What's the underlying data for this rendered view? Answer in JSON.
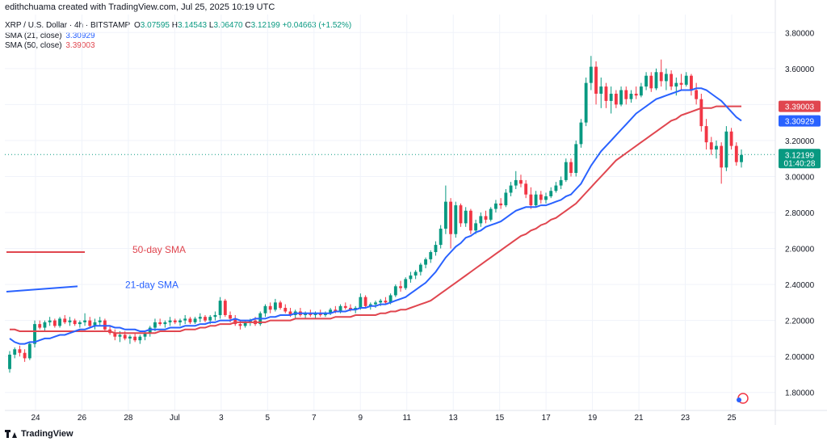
{
  "header": {
    "text": "edithchuama created with TradingView.com, Jul 25, 2025 10:19 UTC"
  },
  "legend": {
    "symbol": "XRP / U.S. Dollar · 4h · BITSTAMP",
    "o_label": "O",
    "o": "3.07595",
    "h_label": "H",
    "h": "3.14543",
    "l_label": "L",
    "l": "3.06470",
    "c_label": "C",
    "c": "3.12199",
    "change": "+0.04663 (+1.52%)",
    "sma21_label": "SMA (21, close)",
    "sma21": "3.30929",
    "sma50_label": "SMA (50, close)",
    "sma50": "3.39003"
  },
  "footer": {
    "brand": "TradingView"
  },
  "colors": {
    "up": "#089981",
    "down": "#f23645",
    "sma21": "#2962ff",
    "sma50": "#e0464f",
    "last": "#089981"
  },
  "chart_data": {
    "type": "candlestick",
    "ylim": [
      1.7,
      3.9
    ],
    "y_ticks": [
      "3.80000",
      "3.60000",
      "3.40000",
      "3.20000",
      "3.00000",
      "2.80000",
      "2.60000",
      "2.40000",
      "2.20000",
      "2.00000",
      "1.80000"
    ],
    "x_ticks": [
      "24",
      "26",
      "28",
      "Jul",
      "3",
      "5",
      "7",
      "9",
      "11",
      "13",
      "15",
      "17",
      "19",
      "21",
      "23",
      "25"
    ],
    "annotations": [
      {
        "text": "50-day SMA",
        "series": "sma50"
      },
      {
        "text": "21-day SMA",
        "series": "sma21"
      }
    ],
    "sample_lines": [
      {
        "series": "sma50",
        "y": [
          2.58,
          2.58
        ]
      },
      {
        "series": "sma21",
        "y": [
          2.36,
          2.39
        ]
      }
    ],
    "price_labels": [
      {
        "value": 3.39003,
        "text": "3.39003",
        "series": "sma50"
      },
      {
        "value": 3.30929,
        "text": "3.30929",
        "series": "sma21"
      },
      {
        "value": 3.12199,
        "text": "3.12199",
        "sub": "01:40:28",
        "series": "last"
      }
    ],
    "candles": [
      [
        1.93,
        2.03,
        1.91,
        2.01
      ],
      [
        2.01,
        2.05,
        1.99,
        2.04
      ],
      [
        2.04,
        2.06,
        2.0,
        2.02
      ],
      [
        2.02,
        2.04,
        1.97,
        1.99
      ],
      [
        1.99,
        2.08,
        1.98,
        2.07
      ],
      [
        2.07,
        2.2,
        2.05,
        2.18
      ],
      [
        2.18,
        2.2,
        2.15,
        2.16
      ],
      [
        2.16,
        2.2,
        2.14,
        2.19
      ],
      [
        2.19,
        2.22,
        2.17,
        2.2
      ],
      [
        2.2,
        2.21,
        2.16,
        2.17
      ],
      [
        2.17,
        2.22,
        2.16,
        2.21
      ],
      [
        2.21,
        2.23,
        2.18,
        2.19
      ],
      [
        2.19,
        2.22,
        2.17,
        2.2
      ],
      [
        2.2,
        2.21,
        2.17,
        2.18
      ],
      [
        2.18,
        2.2,
        2.16,
        2.19
      ],
      [
        2.19,
        2.24,
        2.17,
        2.2
      ],
      [
        2.2,
        2.22,
        2.16,
        2.17
      ],
      [
        2.17,
        2.21,
        2.15,
        2.19
      ],
      [
        2.19,
        2.22,
        2.17,
        2.2
      ],
      [
        2.2,
        2.21,
        2.14,
        2.15
      ],
      [
        2.15,
        2.17,
        2.12,
        2.13
      ],
      [
        2.13,
        2.15,
        2.09,
        2.11
      ],
      [
        2.11,
        2.14,
        2.08,
        2.12
      ],
      [
        2.12,
        2.14,
        2.09,
        2.1
      ],
      [
        2.1,
        2.12,
        2.07,
        2.11
      ],
      [
        2.11,
        2.13,
        2.08,
        2.09
      ],
      [
        2.09,
        2.12,
        2.07,
        2.11
      ],
      [
        2.11,
        2.14,
        2.09,
        2.13
      ],
      [
        2.13,
        2.17,
        2.11,
        2.16
      ],
      [
        2.16,
        2.21,
        2.14,
        2.19
      ],
      [
        2.19,
        2.21,
        2.17,
        2.18
      ],
      [
        2.18,
        2.2,
        2.16,
        2.19
      ],
      [
        2.19,
        2.22,
        2.17,
        2.2
      ],
      [
        2.2,
        2.21,
        2.18,
        2.19
      ],
      [
        2.19,
        2.21,
        2.17,
        2.2
      ],
      [
        2.2,
        2.23,
        2.18,
        2.21
      ],
      [
        2.21,
        2.22,
        2.18,
        2.19
      ],
      [
        2.19,
        2.22,
        2.18,
        2.21
      ],
      [
        2.21,
        2.24,
        2.19,
        2.22
      ],
      [
        2.22,
        2.23,
        2.19,
        2.2
      ],
      [
        2.2,
        2.23,
        2.18,
        2.22
      ],
      [
        2.22,
        2.25,
        2.2,
        2.23
      ],
      [
        2.23,
        2.33,
        2.21,
        2.31
      ],
      [
        2.31,
        2.32,
        2.22,
        2.23
      ],
      [
        2.23,
        2.25,
        2.19,
        2.21
      ],
      [
        2.21,
        2.23,
        2.17,
        2.18
      ],
      [
        2.18,
        2.2,
        2.15,
        2.17
      ],
      [
        2.17,
        2.2,
        2.16,
        2.19
      ],
      [
        2.19,
        2.21,
        2.17,
        2.2
      ],
      [
        2.2,
        2.22,
        2.17,
        2.18
      ],
      [
        2.18,
        2.25,
        2.17,
        2.24
      ],
      [
        2.24,
        2.29,
        2.22,
        2.28
      ],
      [
        2.28,
        2.3,
        2.24,
        2.26
      ],
      [
        2.26,
        2.32,
        2.25,
        2.3
      ],
      [
        2.3,
        2.31,
        2.26,
        2.27
      ],
      [
        2.27,
        2.29,
        2.24,
        2.25
      ],
      [
        2.25,
        2.27,
        2.22,
        2.23
      ],
      [
        2.23,
        2.26,
        2.21,
        2.25
      ],
      [
        2.25,
        2.27,
        2.22,
        2.23
      ],
      [
        2.23,
        2.25,
        2.21,
        2.24
      ],
      [
        2.24,
        2.26,
        2.22,
        2.23
      ],
      [
        2.23,
        2.25,
        2.21,
        2.24
      ],
      [
        2.24,
        2.26,
        2.22,
        2.23
      ],
      [
        2.23,
        2.25,
        2.22,
        2.24
      ],
      [
        2.24,
        2.27,
        2.23,
        2.26
      ],
      [
        2.26,
        2.28,
        2.24,
        2.25
      ],
      [
        2.25,
        2.29,
        2.24,
        2.28
      ],
      [
        2.28,
        2.3,
        2.26,
        2.27
      ],
      [
        2.27,
        2.29,
        2.25,
        2.26
      ],
      [
        2.26,
        2.28,
        2.24,
        2.27
      ],
      [
        2.27,
        2.35,
        2.26,
        2.33
      ],
      [
        2.33,
        2.34,
        2.27,
        2.28
      ],
      [
        2.28,
        2.3,
        2.26,
        2.29
      ],
      [
        2.29,
        2.31,
        2.27,
        2.3
      ],
      [
        2.3,
        2.32,
        2.28,
        2.31
      ],
      [
        2.31,
        2.33,
        2.29,
        2.3
      ],
      [
        2.3,
        2.35,
        2.29,
        2.34
      ],
      [
        2.34,
        2.4,
        2.33,
        2.39
      ],
      [
        2.39,
        2.42,
        2.36,
        2.38
      ],
      [
        2.38,
        2.44,
        2.37,
        2.43
      ],
      [
        2.43,
        2.47,
        2.41,
        2.45
      ],
      [
        2.45,
        2.48,
        2.43,
        2.47
      ],
      [
        2.47,
        2.52,
        2.45,
        2.51
      ],
      [
        2.51,
        2.55,
        2.49,
        2.54
      ],
      [
        2.54,
        2.59,
        2.52,
        2.58
      ],
      [
        2.58,
        2.64,
        2.56,
        2.62
      ],
      [
        2.62,
        2.73,
        2.6,
        2.71
      ],
      [
        2.71,
        2.95,
        2.68,
        2.86
      ],
      [
        2.86,
        2.88,
        2.6,
        2.68
      ],
      [
        2.68,
        2.86,
        2.66,
        2.84
      ],
      [
        2.84,
        2.85,
        2.72,
        2.74
      ],
      [
        2.74,
        2.83,
        2.72,
        2.81
      ],
      [
        2.81,
        2.82,
        2.68,
        2.7
      ],
      [
        2.7,
        2.76,
        2.68,
        2.74
      ],
      [
        2.74,
        2.8,
        2.72,
        2.78
      ],
      [
        2.78,
        2.81,
        2.74,
        2.76
      ],
      [
        2.76,
        2.83,
        2.75,
        2.82
      ],
      [
        2.82,
        2.87,
        2.8,
        2.85
      ],
      [
        2.85,
        2.88,
        2.82,
        2.84
      ],
      [
        2.84,
        2.93,
        2.83,
        2.91
      ],
      [
        2.91,
        2.97,
        2.89,
        2.95
      ],
      [
        2.95,
        3.03,
        2.93,
        2.98
      ],
      [
        2.98,
        3.01,
        2.94,
        2.96
      ],
      [
        2.96,
        2.98,
        2.88,
        2.9
      ],
      [
        2.9,
        2.94,
        2.82,
        2.84
      ],
      [
        2.84,
        2.92,
        2.83,
        2.9
      ],
      [
        2.9,
        2.92,
        2.85,
        2.87
      ],
      [
        2.87,
        2.91,
        2.85,
        2.89
      ],
      [
        2.89,
        2.94,
        2.88,
        2.92
      ],
      [
        2.92,
        2.97,
        2.91,
        2.95
      ],
      [
        2.95,
        3.0,
        2.93,
        2.98
      ],
      [
        2.98,
        3.1,
        2.97,
        3.08
      ],
      [
        3.08,
        3.1,
        3.0,
        3.02
      ],
      [
        3.02,
        3.2,
        3.0,
        3.18
      ],
      [
        3.18,
        3.32,
        3.16,
        3.3
      ],
      [
        3.3,
        3.55,
        3.28,
        3.52
      ],
      [
        3.52,
        3.67,
        3.48,
        3.61
      ],
      [
        3.61,
        3.64,
        3.4,
        3.46
      ],
      [
        3.46,
        3.55,
        3.38,
        3.5
      ],
      [
        3.5,
        3.52,
        3.38,
        3.42
      ],
      [
        3.42,
        3.5,
        3.35,
        3.46
      ],
      [
        3.46,
        3.48,
        3.38,
        3.4
      ],
      [
        3.4,
        3.5,
        3.39,
        3.48
      ],
      [
        3.48,
        3.5,
        3.4,
        3.43
      ],
      [
        3.43,
        3.48,
        3.41,
        3.46
      ],
      [
        3.46,
        3.5,
        3.43,
        3.45
      ],
      [
        3.45,
        3.52,
        3.44,
        3.5
      ],
      [
        3.5,
        3.58,
        3.48,
        3.56
      ],
      [
        3.56,
        3.58,
        3.47,
        3.49
      ],
      [
        3.49,
        3.6,
        3.48,
        3.58
      ],
      [
        3.58,
        3.65,
        3.5,
        3.53
      ],
      [
        3.53,
        3.6,
        3.48,
        3.57
      ],
      [
        3.57,
        3.59,
        3.48,
        3.5
      ],
      [
        3.5,
        3.55,
        3.45,
        3.52
      ],
      [
        3.52,
        3.57,
        3.48,
        3.51
      ],
      [
        3.51,
        3.58,
        3.5,
        3.56
      ],
      [
        3.56,
        3.57,
        3.45,
        3.48
      ],
      [
        3.48,
        3.52,
        3.4,
        3.43
      ],
      [
        3.43,
        3.46,
        3.25,
        3.28
      ],
      [
        3.28,
        3.32,
        3.15,
        3.19
      ],
      [
        3.19,
        3.22,
        3.12,
        3.15
      ],
      [
        3.15,
        3.2,
        3.1,
        3.17
      ],
      [
        3.17,
        3.19,
        2.96,
        3.05
      ],
      [
        3.05,
        3.28,
        3.03,
        3.25
      ],
      [
        3.25,
        3.27,
        3.15,
        3.17
      ],
      [
        3.17,
        3.19,
        3.06,
        3.08
      ],
      [
        3.08,
        3.15,
        3.05,
        3.12
      ]
    ],
    "sma21": [
      2.1,
      2.08,
      2.07,
      2.07,
      2.08,
      2.08,
      2.09,
      2.1,
      2.1,
      2.11,
      2.12,
      2.12,
      2.13,
      2.14,
      2.15,
      2.15,
      2.16,
      2.17,
      2.17,
      2.17,
      2.17,
      2.16,
      2.16,
      2.15,
      2.15,
      2.15,
      2.14,
      2.14,
      2.15,
      2.15,
      2.15,
      2.15,
      2.16,
      2.16,
      2.16,
      2.17,
      2.17,
      2.17,
      2.18,
      2.18,
      2.19,
      2.19,
      2.2,
      2.2,
      2.2,
      2.21,
      2.2,
      2.2,
      2.2,
      2.21,
      2.21,
      2.21,
      2.22,
      2.22,
      2.23,
      2.23,
      2.23,
      2.24,
      2.24,
      2.24,
      2.24,
      2.24,
      2.24,
      2.24,
      2.24,
      2.25,
      2.25,
      2.25,
      2.26,
      2.26,
      2.27,
      2.27,
      2.28,
      2.28,
      2.29,
      2.29,
      2.3,
      2.31,
      2.32,
      2.33,
      2.35,
      2.37,
      2.39,
      2.41,
      2.44,
      2.47,
      2.51,
      2.55,
      2.58,
      2.61,
      2.63,
      2.66,
      2.67,
      2.69,
      2.7,
      2.72,
      2.73,
      2.74,
      2.75,
      2.77,
      2.79,
      2.81,
      2.82,
      2.83,
      2.83,
      2.83,
      2.84,
      2.84,
      2.85,
      2.86,
      2.87,
      2.89,
      2.9,
      2.93,
      2.96,
      3.01,
      3.06,
      3.1,
      3.14,
      3.17,
      3.2,
      3.23,
      3.26,
      3.29,
      3.32,
      3.35,
      3.37,
      3.39,
      3.41,
      3.43,
      3.44,
      3.45,
      3.46,
      3.47,
      3.48,
      3.48,
      3.48,
      3.49,
      3.49,
      3.48,
      3.46,
      3.44,
      3.42,
      3.39,
      3.36,
      3.33,
      3.31
    ],
    "sma50": [
      2.15,
      2.15,
      2.14,
      2.14,
      2.14,
      2.14,
      2.14,
      2.14,
      2.14,
      2.14,
      2.14,
      2.14,
      2.14,
      2.14,
      2.14,
      2.14,
      2.14,
      2.14,
      2.14,
      2.14,
      2.14,
      2.13,
      2.13,
      2.13,
      2.13,
      2.13,
      2.13,
      2.13,
      2.13,
      2.13,
      2.14,
      2.14,
      2.14,
      2.14,
      2.14,
      2.15,
      2.15,
      2.15,
      2.16,
      2.16,
      2.17,
      2.17,
      2.18,
      2.18,
      2.18,
      2.19,
      2.19,
      2.19,
      2.19,
      2.19,
      2.19,
      2.19,
      2.2,
      2.2,
      2.2,
      2.2,
      2.2,
      2.21,
      2.21,
      2.21,
      2.21,
      2.21,
      2.21,
      2.21,
      2.21,
      2.22,
      2.22,
      2.22,
      2.22,
      2.23,
      2.23,
      2.23,
      2.23,
      2.23,
      2.24,
      2.24,
      2.25,
      2.25,
      2.26,
      2.26,
      2.27,
      2.28,
      2.29,
      2.3,
      2.31,
      2.33,
      2.35,
      2.37,
      2.39,
      2.41,
      2.43,
      2.45,
      2.47,
      2.49,
      2.51,
      2.53,
      2.55,
      2.57,
      2.59,
      2.61,
      2.63,
      2.65,
      2.67,
      2.68,
      2.7,
      2.71,
      2.73,
      2.74,
      2.76,
      2.77,
      2.79,
      2.81,
      2.83,
      2.85,
      2.88,
      2.91,
      2.94,
      2.97,
      3.0,
      3.03,
      3.06,
      3.09,
      3.11,
      3.13,
      3.15,
      3.17,
      3.19,
      3.21,
      3.23,
      3.25,
      3.27,
      3.29,
      3.31,
      3.32,
      3.34,
      3.35,
      3.36,
      3.37,
      3.38,
      3.38,
      3.38,
      3.39,
      3.39,
      3.39,
      3.39,
      3.39,
      3.39
    ]
  }
}
